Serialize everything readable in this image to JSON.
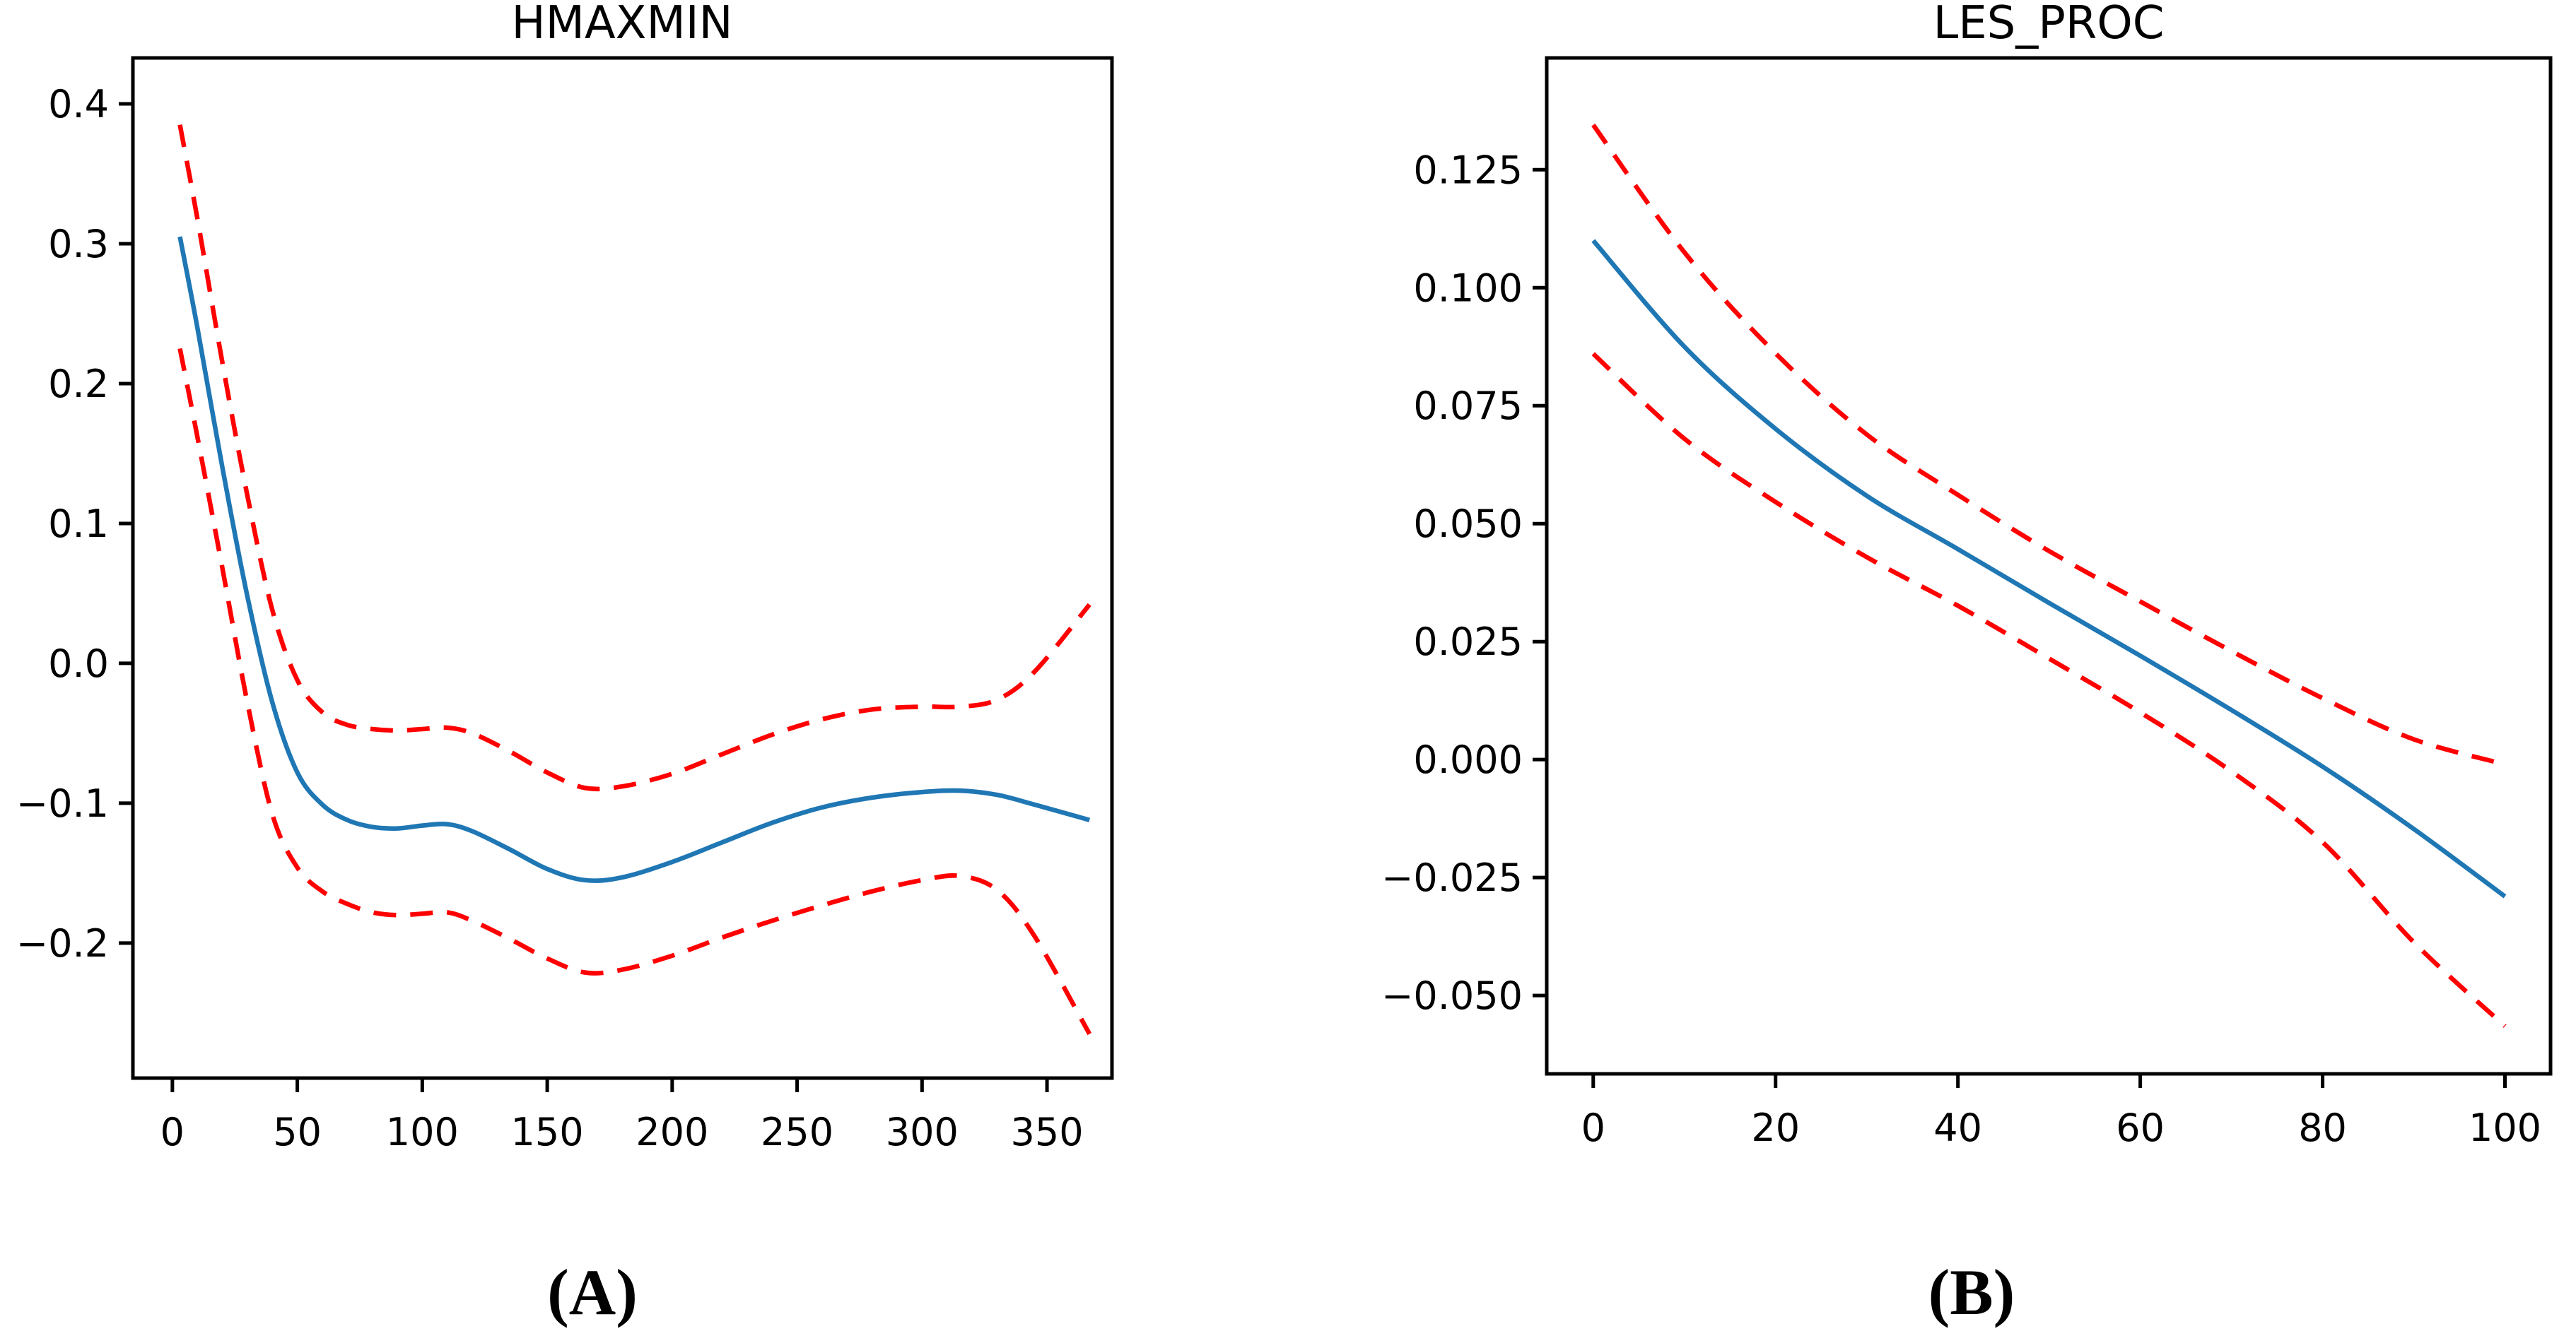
{
  "figure": {
    "background": "#ffffff",
    "spine_color": "#000000",
    "estimate_color": "#1f77b4",
    "confidence_color": "#ff0000"
  },
  "chart_data": [
    {
      "type": "line",
      "title": "HMAXMIN",
      "panel_label": "(A)",
      "xlim": [
        -15.8,
        376.0
      ],
      "ylim": [
        -0.2965,
        0.4328
      ],
      "grid": false,
      "legend": null,
      "xticks": [
        0,
        50,
        100,
        150,
        200,
        250,
        300,
        350
      ],
      "xtick_labels": [
        "0",
        "50",
        "100",
        "150",
        "200",
        "250",
        "300",
        "350"
      ],
      "yticks": [
        0.4,
        0.3,
        0.2,
        0.1,
        0.0,
        -0.1,
        -0.2
      ],
      "ytick_labels": [
        "0.4",
        "0.3",
        "0.2",
        "0.1",
        "0.0",
        "−0.1",
        "−0.2"
      ],
      "series": [
        {
          "name": "estimate",
          "style": "solid",
          "color": "#1f77b4",
          "x": [
            3,
            10,
            20,
            30,
            40,
            50,
            60,
            70,
            80,
            90,
            100,
            110,
            120,
            135,
            150,
            165,
            180,
            200,
            220,
            240,
            260,
            280,
            300,
            315,
            330,
            345,
            367
          ],
          "y": [
            0.305,
            0.24,
            0.14,
            0.048,
            -0.028,
            -0.078,
            -0.101,
            -0.112,
            -0.117,
            -0.118,
            -0.116,
            -0.115,
            -0.12,
            -0.133,
            -0.147,
            -0.155,
            -0.153,
            -0.142,
            -0.128,
            -0.114,
            -0.103,
            -0.096,
            -0.092,
            -0.091,
            -0.094,
            -0.101,
            -0.112
          ]
        },
        {
          "name": "upper-confidence",
          "style": "dashed",
          "color": "#ff0000",
          "x": [
            3,
            10,
            20,
            30,
            40,
            50,
            60,
            70,
            80,
            90,
            100,
            110,
            120,
            135,
            150,
            165,
            180,
            200,
            220,
            240,
            260,
            280,
            300,
            315,
            330,
            345,
            367
          ],
          "y": [
            0.385,
            0.318,
            0.215,
            0.12,
            0.038,
            -0.012,
            -0.035,
            -0.044,
            -0.047,
            -0.048,
            -0.047,
            -0.046,
            -0.05,
            -0.063,
            -0.078,
            -0.089,
            -0.088,
            -0.079,
            -0.065,
            -0.051,
            -0.04,
            -0.033,
            -0.031,
            -0.031,
            -0.026,
            -0.006,
            0.042
          ]
        },
        {
          "name": "lower-confidence",
          "style": "dashed",
          "color": "#ff0000",
          "x": [
            3,
            10,
            20,
            30,
            40,
            50,
            60,
            70,
            80,
            90,
            100,
            110,
            120,
            135,
            150,
            165,
            180,
            200,
            220,
            240,
            260,
            280,
            300,
            315,
            330,
            345,
            367
          ],
          "y": [
            0.225,
            0.162,
            0.068,
            -0.028,
            -0.108,
            -0.146,
            -0.163,
            -0.172,
            -0.178,
            -0.18,
            -0.179,
            -0.178,
            -0.184,
            -0.197,
            -0.211,
            -0.221,
            -0.219,
            -0.209,
            -0.196,
            -0.184,
            -0.173,
            -0.163,
            -0.155,
            -0.152,
            -0.162,
            -0.195,
            -0.265
          ]
        }
      ]
    },
    {
      "type": "line",
      "title": "LES_PROC",
      "panel_label": "(B)",
      "xlim": [
        -5.1,
        105.0
      ],
      "ylim": [
        -0.0666,
        0.1487
      ],
      "grid": false,
      "legend": null,
      "xticks": [
        0,
        20,
        40,
        60,
        80,
        100
      ],
      "xtick_labels": [
        "0",
        "20",
        "40",
        "60",
        "80",
        "100"
      ],
      "yticks": [
        0.125,
        0.1,
        0.075,
        0.05,
        0.025,
        0.0,
        -0.025,
        -0.05
      ],
      "ytick_labels": [
        "0.125",
        "0.100",
        "0.075",
        "0.050",
        "0.025",
        "0.000",
        "−0.025",
        "−0.050"
      ],
      "series": [
        {
          "name": "estimate",
          "style": "solid",
          "color": "#1f77b4",
          "x": [
            0,
            10,
            20,
            30,
            40,
            50,
            60,
            70,
            80,
            90,
            100
          ],
          "y": [
            0.11,
            0.0875,
            0.0701,
            0.0559,
            0.0446,
            0.0332,
            0.022,
            0.0105,
            -0.0015,
            -0.0147,
            -0.029
          ]
        },
        {
          "name": "upper-confidence",
          "style": "dashed",
          "color": "#ff0000",
          "x": [
            0,
            10,
            20,
            30,
            40,
            50,
            60,
            70,
            80,
            90,
            100
          ],
          "y": [
            0.1345,
            0.1075,
            0.0861,
            0.0689,
            0.0561,
            0.0442,
            0.0335,
            0.023,
            0.013,
            0.0043,
            -0.001
          ]
        },
        {
          "name": "lower-confidence",
          "style": "dashed",
          "color": "#ff0000",
          "x": [
            0,
            10,
            20,
            30,
            40,
            50,
            60,
            70,
            80,
            90,
            100
          ],
          "y": [
            0.086,
            0.068,
            0.0546,
            0.0429,
            0.0326,
            0.0214,
            0.01,
            -0.0025,
            -0.0175,
            -0.0387,
            -0.0565
          ]
        }
      ]
    }
  ]
}
